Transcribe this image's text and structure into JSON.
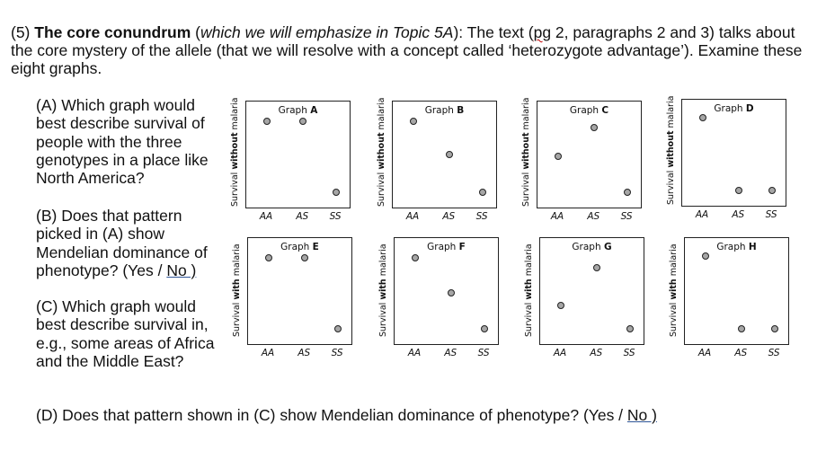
{
  "intro": {
    "number": "(5) ",
    "bold": "The core conundrum",
    "t1": " (",
    "italic": "which we will emphasize in Topic 5A",
    "t2": "): The text (",
    "pg": "pg",
    "t3": " 2, paragraphs 2 and 3) talks about the core mystery of the allele (that we will resolve with a concept called ‘heterozygote advantage’). Examine these eight graphs."
  },
  "questions": {
    "a": "(A) Which graph would best describe survival of people with the three genotypes in a place like North America?",
    "b_text": "(B) Does that pattern picked in (A) show Mendelian dominance of phenotype? (Yes / ",
    "b_no": "No )",
    "c": "(C) Which graph would best describe survival in, e.g., some areas of Africa and the Middle East?",
    "d_text": "(D) Does that pattern shown in (C) show Mendelian dominance of phenotype? (Yes / ",
    "d_no": "No )"
  },
  "x_categories": [
    "AA",
    "AS",
    "SS"
  ],
  "ylabels": {
    "without_a": "Survival ",
    "without_b": "without",
    "without_c": " malaria",
    "with_a": "Survival ",
    "with_b": "with",
    "with_c": " malaria"
  },
  "graphs": [
    {
      "prefix": "Graph ",
      "letter": "A",
      "condition": "without malaria",
      "values": [
        0.85,
        0.85,
        0.1
      ]
    },
    {
      "prefix": "Graph ",
      "letter": "B",
      "condition": "without malaria",
      "values": [
        0.85,
        0.5,
        0.1
      ]
    },
    {
      "prefix": "Graph ",
      "letter": "C",
      "condition": "without malaria",
      "values": [
        0.48,
        0.78,
        0.1
      ]
    },
    {
      "prefix": "Graph ",
      "letter": "D",
      "condition": "without malaria",
      "values": [
        0.87,
        0.1,
        0.1
      ]
    },
    {
      "prefix": "Graph ",
      "letter": "E",
      "condition": "with malaria",
      "values": [
        0.85,
        0.85,
        0.1
      ]
    },
    {
      "prefix": "Graph ",
      "letter": "F",
      "condition": "with malaria",
      "values": [
        0.85,
        0.48,
        0.1
      ]
    },
    {
      "prefix": "Graph ",
      "letter": "G",
      "condition": "with malaria",
      "values": [
        0.35,
        0.75,
        0.1
      ]
    },
    {
      "prefix": "Graph ",
      "letter": "H",
      "condition": "with malaria",
      "values": [
        0.87,
        0.1,
        0.1
      ]
    }
  ],
  "colors": {
    "marker_fill": "#a6a6a6",
    "marker_stroke": "#222222",
    "underline": "#2f5597",
    "squiggle": "#c00000"
  }
}
